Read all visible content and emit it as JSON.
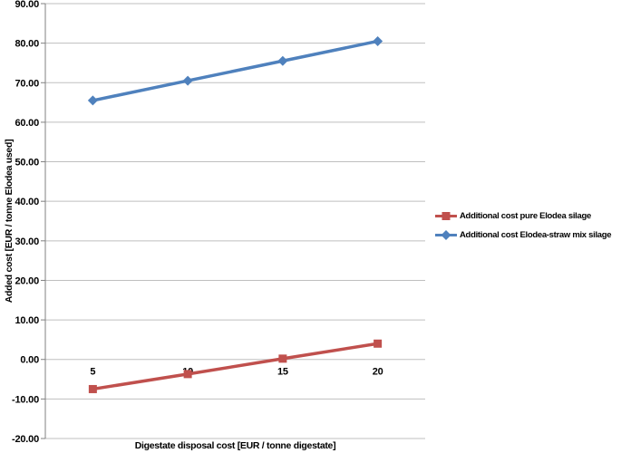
{
  "chart_data": {
    "type": "line",
    "title": "",
    "xlabel": "Digestate disposal cost [EUR / tonne digestate]",
    "ylabel": "Added cost [EUR / tonne Elodea used]",
    "categories": [
      "5",
      "10",
      "15",
      "20"
    ],
    "x_values": [
      5,
      10,
      15,
      20
    ],
    "series": [
      {
        "name": "Additional cost pure Elodea silage",
        "color": "#C0504D",
        "marker": "square",
        "values": [
          -7.5,
          -3.7,
          0.2,
          4.0
        ]
      },
      {
        "name": "Additional cost Elodea-straw mix silage",
        "color": "#4F81BD",
        "marker": "diamond",
        "values": [
          65.5,
          70.5,
          75.5,
          80.5
        ]
      }
    ],
    "ylim": [
      -20,
      90
    ],
    "y_tick_step": 10,
    "y_tick_labels": [
      "90.00",
      "80.00",
      "70.00",
      "60.00",
      "50.00",
      "40.00",
      "30.00",
      "20.00",
      "10.00",
      "0.00",
      "-10.00",
      "-20.00"
    ],
    "grid": "horizontal",
    "legend_position": "right",
    "gridline_color": "#BFBFBF",
    "axis_color": "#808080",
    "text_color": "#000000",
    "background_color": "#FFFFFF"
  }
}
